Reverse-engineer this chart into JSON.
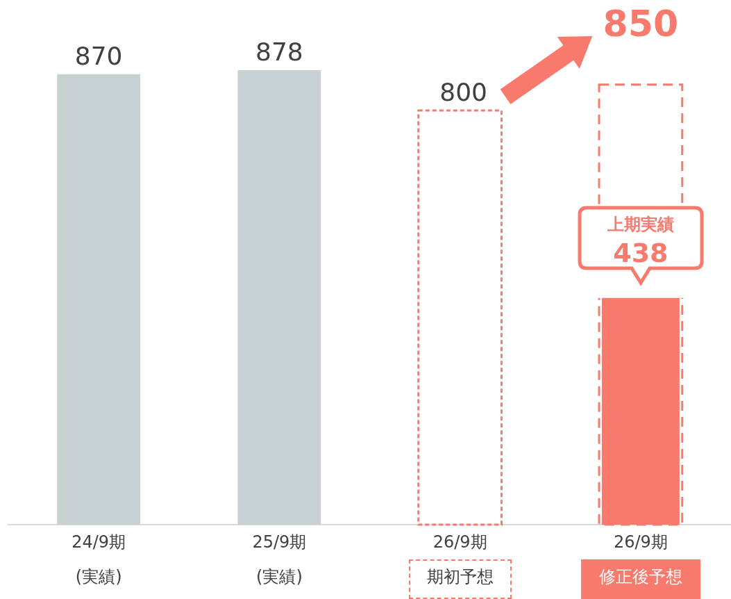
{
  "chart_data": {
    "type": "bar",
    "categories": [
      "24/9期\n(実績)",
      "25/9期\n(実績)",
      "26/9期",
      "26/9期"
    ],
    "series": [
      {
        "color": "#c8d1d2",
        "values": [
          870,
          878,
          null,
          null
        ]
      },
      {
        "color": "#f87a6c",
        "line_style": "dashed",
        "values": [
          null,
          null,
          800,
          850
        ]
      },
      {
        "color": "#f87a6c",
        "values": [
          null,
          null,
          null,
          438
        ]
      }
    ],
    "grid": false,
    "legend": false,
    "data_labels": true,
    "tick_labels": "x",
    "annotations": [
      "上期実績",
      "期初予想",
      "修正後予想"
    ]
  }
}
